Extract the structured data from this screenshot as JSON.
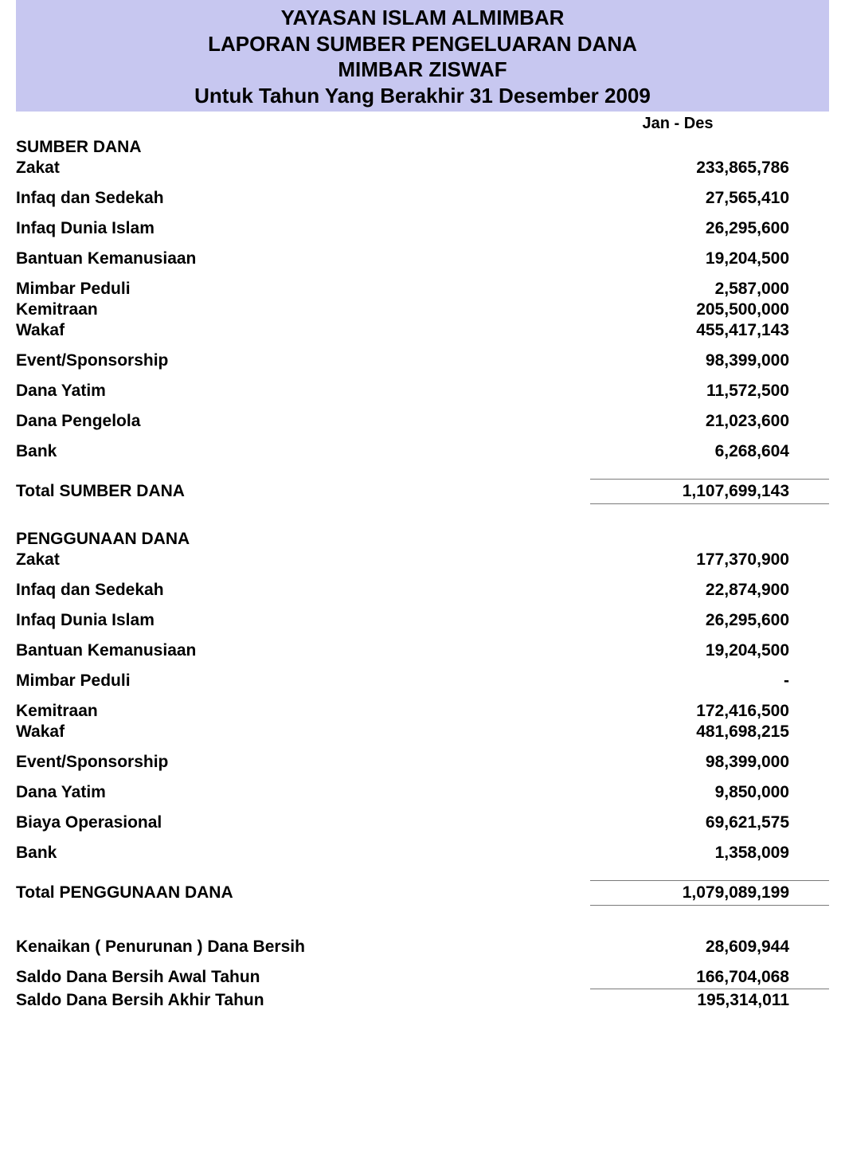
{
  "colors": {
    "header_bg": "#c7c7f0",
    "text": "#000000",
    "rule": "#7a7a7a",
    "page_bg": "#ffffff"
  },
  "typography": {
    "font_family": "Arial, Helvetica, sans-serif",
    "header_fontsize": 26,
    "body_fontsize": 21,
    "period_fontsize": 20,
    "weight": "bold"
  },
  "header": {
    "line1": "YAYASAN ISLAM ALMIMBAR",
    "line2": "LAPORAN SUMBER PENGELUARAN DANA",
    "line3": "MIMBAR ZISWAF",
    "line4": "Untuk Tahun Yang Berakhir 31 Desember 2009"
  },
  "period_label": "Jan - Des",
  "sumber": {
    "title": "SUMBER DANA",
    "items": [
      {
        "label": "Zakat",
        "value": "233,865,786",
        "spacing": "tight"
      },
      {
        "label": "Infaq dan Sedekah",
        "value": "27,565,410",
        "spacing": "spaced"
      },
      {
        "label": "Infaq Dunia Islam",
        "value": "26,295,600",
        "spacing": "spaced"
      },
      {
        "label": "Bantuan Kemanusiaan",
        "value": "19,204,500",
        "spacing": "spaced"
      },
      {
        "label": "Mimbar Peduli",
        "value": "2,587,000",
        "spacing": "spaced"
      },
      {
        "label": "Kemitraan",
        "value": "205,500,000",
        "spacing": "tight"
      },
      {
        "label": "Wakaf",
        "value": "455,417,143",
        "spacing": "tight"
      },
      {
        "label": "Event/Sponsorship",
        "value": "98,399,000",
        "spacing": "spaced"
      },
      {
        "label": "Dana Yatim",
        "value": "11,572,500",
        "spacing": "spaced"
      },
      {
        "label": "Dana Pengelola",
        "value": "21,023,600",
        "spacing": "spaced"
      },
      {
        "label": "Bank",
        "value": "6,268,604",
        "spacing": "spaced"
      }
    ],
    "total_label": "Total SUMBER DANA",
    "total_value": "1,107,699,143"
  },
  "penggunaan": {
    "title": "PENGGUNAAN DANA",
    "items": [
      {
        "label": "Zakat",
        "value": "177,370,900",
        "spacing": "tight"
      },
      {
        "label": "Infaq dan Sedekah",
        "value": "22,874,900",
        "spacing": "spaced"
      },
      {
        "label": "Infaq Dunia Islam",
        "value": "26,295,600",
        "spacing": "spaced"
      },
      {
        "label": "Bantuan Kemanusiaan",
        "value": "19,204,500",
        "spacing": "spaced"
      },
      {
        "label": "Mimbar Peduli",
        "value": "-",
        "spacing": "spaced"
      },
      {
        "label": "Kemitraan",
        "value": "172,416,500",
        "spacing": "spaced"
      },
      {
        "label": "Wakaf",
        "value": "481,698,215",
        "spacing": "tight"
      },
      {
        "label": "Event/Sponsorship",
        "value": "98,399,000",
        "spacing": "spaced"
      },
      {
        "label": "Dana Yatim",
        "value": "9,850,000",
        "spacing": "spaced"
      },
      {
        "label": "Biaya Operasional",
        "value": "69,621,575",
        "spacing": "spaced"
      },
      {
        "label": "Bank",
        "value": "1,358,009",
        "spacing": "spaced"
      }
    ],
    "total_label": "Total PENGGUNAAN DANA",
    "total_value": "1,079,089,199"
  },
  "summary": {
    "kenaikan_label": "Kenaikan ( Penurunan ) Dana Bersih",
    "kenaikan_value": "28,609,944",
    "awal_label": "Saldo Dana Bersih Awal Tahun",
    "awal_value": "166,704,068",
    "akhir_label": "Saldo Dana Bersih Akhir Tahun",
    "akhir_value": "195,314,011"
  }
}
